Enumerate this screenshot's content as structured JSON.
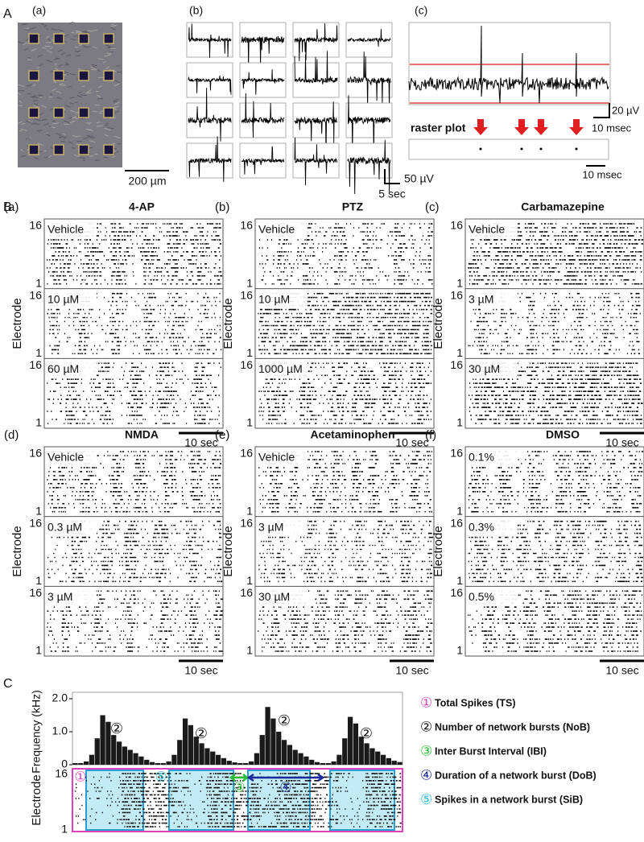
{
  "panel_A": {
    "label": "A",
    "a": {
      "label": "(a)",
      "scale_bar": "200 µm"
    },
    "b": {
      "label": "(b)",
      "scale_y": "50 µV",
      "scale_x": "5 sec"
    },
    "c": {
      "label": "(c)",
      "scale_y": "20 µV",
      "scale_x": "10 msec",
      "raster_label": "raster plot",
      "raster_scale": "10 msec"
    }
  },
  "panel_B": {
    "label": "B",
    "y_axis_label": "Electrode",
    "electrode_max": "16",
    "electrode_min": "1",
    "scale_bar": "10 sec",
    "plots": [
      {
        "label": "(a)",
        "title": "4-AP",
        "conditions": [
          "Vehicle",
          "10 µM",
          "60 µM"
        ]
      },
      {
        "label": "(b)",
        "title": "PTZ",
        "conditions": [
          "Vehicle",
          "10 µM",
          "1000 µM"
        ]
      },
      {
        "label": "(c)",
        "title": "Carbamazepine",
        "conditions": [
          "Vehicle",
          "3 µM",
          "30 µM"
        ]
      },
      {
        "label": "(d)",
        "title": "NMDA",
        "conditions": [
          "Vehicle",
          "0.3 µM",
          "3 µM"
        ]
      },
      {
        "label": "(e)",
        "title": "Acetaminophen",
        "conditions": [
          "Vehicle",
          "3 µM",
          "30 µM"
        ]
      },
      {
        "label": "(f)",
        "title": "DMSO",
        "conditions": [
          "0.1%",
          "0.3%",
          "0.5%"
        ]
      }
    ]
  },
  "panel_C": {
    "label": "C",
    "electrode_label": "Electrode",
    "electrode_max": "16",
    "electrode_min": "1",
    "markers": [
      "①",
      "⑤",
      "③",
      "④"
    ],
    "legend": [
      {
        "marker": "①",
        "text": "Total Spikes (TS)",
        "color": "#e040c0"
      },
      {
        "marker": "②",
        "text": "Number of network bursts (NoB)",
        "color": "#111111"
      },
      {
        "marker": "③",
        "text": "Inter Burst Interval (IBI)",
        "color": "#2dbf3a"
      },
      {
        "marker": "④",
        "text": "Duration of a network burst (DoB)",
        "color": "#1a2a9a"
      },
      {
        "marker": "⑤",
        "text": "Spikes in a network burst (SiB)",
        "color": "#29b6d8"
      }
    ]
  },
  "chart_data": {
    "type": "bar",
    "ylabel": "Frequency (kHz)",
    "color": "#1a1a1a",
    "annotations": [
      "②",
      "②",
      "②",
      "②"
    ],
    "values": [
      0.05,
      0.05,
      0.1,
      0.3,
      0.8,
      1.5,
      1.3,
      0.9,
      0.7,
      0.55,
      0.45,
      0.35,
      0.25,
      0.15,
      0.08,
      0.05,
      0.05,
      0.1,
      0.3,
      0.75,
      1.4,
      1.2,
      0.85,
      0.65,
      0.5,
      0.4,
      0.3,
      0.2,
      0.12,
      0.07,
      0.05,
      0.05,
      0.1,
      0.35,
      0.9,
      1.75,
      1.4,
      1.0,
      0.75,
      0.6,
      0.45,
      0.35,
      0.25,
      0.15,
      0.08,
      0.05,
      0.05,
      0.1,
      0.3,
      0.8,
      1.45,
      1.25,
      0.85,
      0.65,
      0.5,
      0.4,
      0.3,
      0.2,
      0.12,
      0.08
    ],
    "ylim": [
      0,
      2
    ],
    "yticks": [
      0,
      {
        "value": 1,
        "label": "1.0"
      },
      {
        "value": 2,
        "label": "2.0"
      }
    ]
  }
}
